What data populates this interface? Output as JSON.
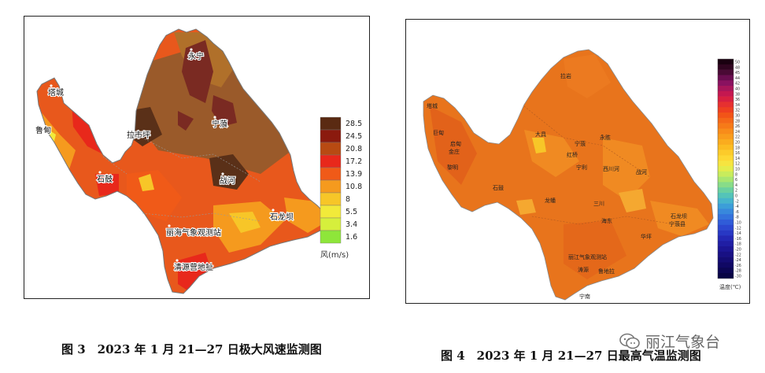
{
  "left_map": {
    "place_labels": [
      {
        "name": "永宁"
      },
      {
        "name": "塔城"
      },
      {
        "name": "鲁甸"
      },
      {
        "name": "拉市坪"
      },
      {
        "name": "宁蒗"
      },
      {
        "name": "石鼓"
      },
      {
        "name": "战河"
      },
      {
        "name": "石龙坝"
      },
      {
        "name": "丽海气象观测站"
      },
      {
        "name": "清源营地扯"
      }
    ],
    "legend": {
      "unit_label": "风(m/s)",
      "levels": [
        {
          "value": "28.5",
          "color": "#5a2a12"
        },
        {
          "value": "24.5",
          "color": "#8b1a0e"
        },
        {
          "value": "20.8",
          "color": "#b84a12"
        },
        {
          "value": "17.2",
          "color": "#e8281b"
        },
        {
          "value": "13.9",
          "color": "#f05a18"
        },
        {
          "value": "10.8",
          "color": "#f59a1e"
        },
        {
          "value": "8",
          "color": "#f7c628"
        },
        {
          "value": "5.5",
          "color": "#f2ea3a"
        },
        {
          "value": "3.4",
          "color": "#d6ef3c"
        },
        {
          "value": "1.6",
          "color": "#8ee63a"
        }
      ]
    }
  },
  "right_map": {
    "place_labels": [
      {
        "name": "拉岩"
      },
      {
        "name": "塔城"
      },
      {
        "name": "巨甸"
      },
      {
        "name": "启甸"
      },
      {
        "name": "金庄"
      },
      {
        "name": "黎明"
      },
      {
        "name": "大具"
      },
      {
        "name": "宁蒗"
      },
      {
        "name": "红桥"
      },
      {
        "name": "永胜"
      },
      {
        "name": "宁利"
      },
      {
        "name": "西川河"
      },
      {
        "name": "战河"
      },
      {
        "name": "石鼓"
      },
      {
        "name": "龙蟠"
      },
      {
        "name": "三川"
      },
      {
        "name": "海东"
      },
      {
        "name": "华坪"
      },
      {
        "name": "石龙坝"
      },
      {
        "name": "宁蒗县"
      },
      {
        "name": "丽江气象观测站"
      },
      {
        "name": "涛源"
      },
      {
        "name": "鲁地拉"
      },
      {
        "name": "宁南"
      }
    ],
    "legend": {
      "unit_label": "温度(℃)",
      "ticks": [
        "50",
        "48",
        "45",
        "44",
        "42",
        "40",
        "38",
        "36",
        "34",
        "32",
        "30",
        "28",
        "26",
        "24",
        "22",
        "20",
        "18",
        "16",
        "14",
        "12",
        "10",
        "8",
        "6",
        "4",
        "2",
        "0",
        "-2",
        "-4",
        "-6",
        "-8",
        "-10",
        "-12",
        "-14",
        "-16",
        "-18",
        "-20",
        "-22",
        "-24",
        "-26",
        "-28",
        "-30"
      ],
      "colors": [
        "#1a0010",
        "#300520",
        "#4a0a35",
        "#6a0e50",
        "#8a1260",
        "#a8165a",
        "#c41850",
        "#d82040",
        "#e63030",
        "#ee4020",
        "#f25418",
        "#f46818",
        "#f67a18",
        "#f88c1a",
        "#f99c1c",
        "#faac1e",
        "#fbbc22",
        "#fccb2a",
        "#fdd834",
        "#f6e440",
        "#e4ec4c",
        "#c8ec5c",
        "#a8e670",
        "#88dc88",
        "#6ad0a0",
        "#54c4b8",
        "#46b4cc",
        "#3c9ed8",
        "#3888dc",
        "#3472dc",
        "#305cd8",
        "#2c48d0",
        "#2838c4",
        "#2428b4",
        "#201ea4",
        "#1c1694",
        "#181084",
        "#140c74",
        "#100864",
        "#0c0654",
        "#080444"
      ]
    }
  },
  "captions": {
    "left": "图 3　2023 年 1 月 21—27 日极大风速监测图",
    "right": "图 4　2023 年 1 月 21—27 日最高气温监测图"
  },
  "watermark": {
    "text": "丽江气象台",
    "icon": "wechat-icon"
  }
}
